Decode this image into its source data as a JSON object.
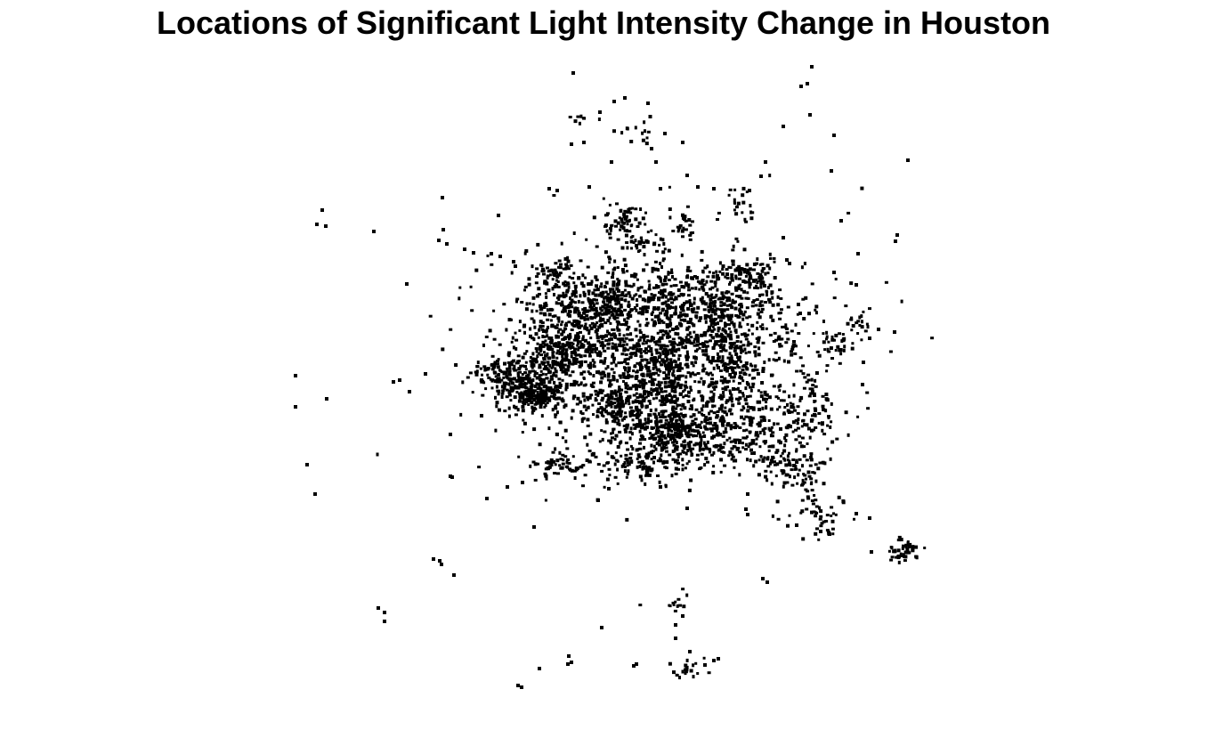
{
  "title": "Locations of Significant Light Intensity Change in Houston",
  "map": {
    "type": "point-map",
    "point_color": "#000000",
    "background_color": "#ffffff",
    "grid": false,
    "axes": false,
    "legend": "none",
    "note": ""
  }
}
